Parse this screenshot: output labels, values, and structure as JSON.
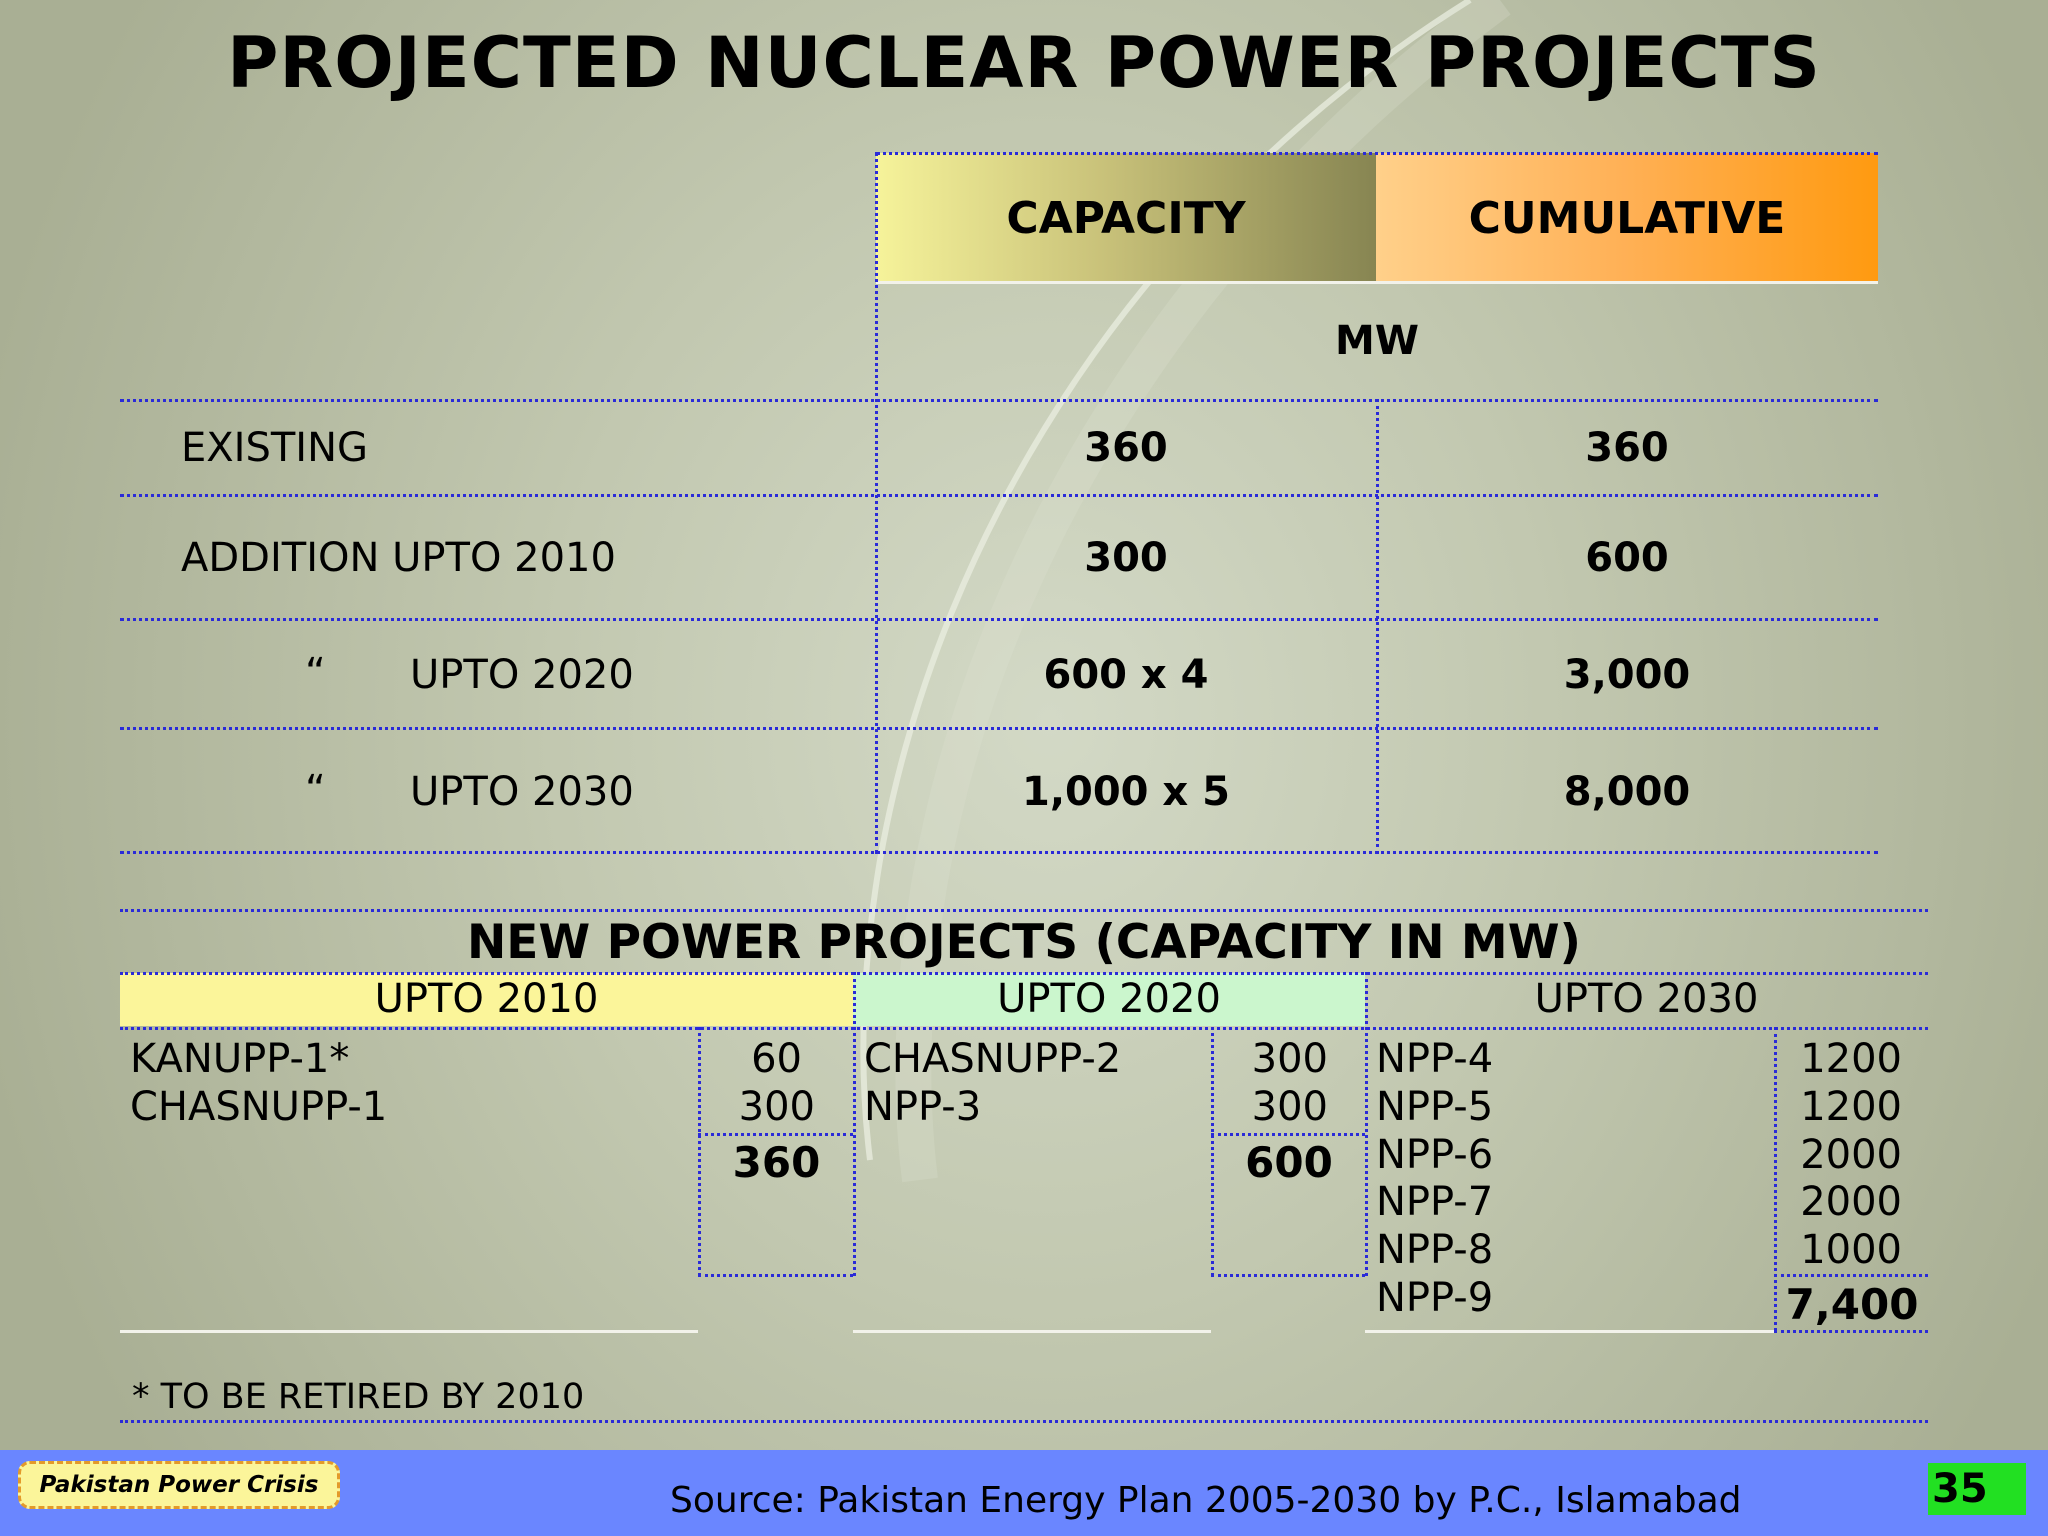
{
  "title": "PROJECTED NUCLEAR POWER PROJECTS",
  "table": {
    "headers": {
      "capacity": "CAPACITY",
      "cumulative": "CUMULATIVE"
    },
    "unit": "MW",
    "rows": [
      {
        "label": "EXISTING",
        "capacity": "360",
        "cumulative": "360"
      },
      {
        "label": "ADDITION UPTO 2010",
        "capacity": "300",
        "cumulative": "600"
      },
      {
        "ditto": "“",
        "label": "UPTO 2020",
        "capacity": "600 x 4",
        "cumulative": "3,000"
      },
      {
        "ditto": "“",
        "label": "UPTO 2030",
        "capacity": "1,000 x 5",
        "cumulative": "8,000"
      }
    ]
  },
  "new_projects": {
    "title": "NEW POWER PROJECTS (CAPACITY IN MW)",
    "upto_2010": {
      "label": "UPTO 2010",
      "items": [
        {
          "name": "KANUPP-1*",
          "mw": "60"
        },
        {
          "name": "CHASNUPP-1",
          "mw": "300"
        }
      ],
      "total": "360"
    },
    "upto_2020": {
      "label": "UPTO 2020",
      "items": [
        {
          "name": "CHASNUPP-2",
          "mw": "300"
        },
        {
          "name": "NPP-3",
          "mw": "300"
        }
      ],
      "total": "600"
    },
    "upto_2030": {
      "label": "UPTO 2030",
      "items": [
        {
          "name": "NPP-4",
          "mw": "1200"
        },
        {
          "name": "NPP-5",
          "mw": "1200"
        },
        {
          "name": "NPP-6",
          "mw": "2000"
        },
        {
          "name": "NPP-7",
          "mw": "2000"
        },
        {
          "name": "NPP-8",
          "mw": "1000"
        },
        {
          "name": "NPP-9",
          "mw": ""
        }
      ],
      "total": "7,400"
    }
  },
  "footnote": "* TO BE RETIRED BY 2010",
  "footer": {
    "badge": "Pakistan Power Crisis",
    "source": "Source: Pakistan Energy Plan 2005-2030 by P.C., Islamabad",
    "page_number": "35"
  }
}
